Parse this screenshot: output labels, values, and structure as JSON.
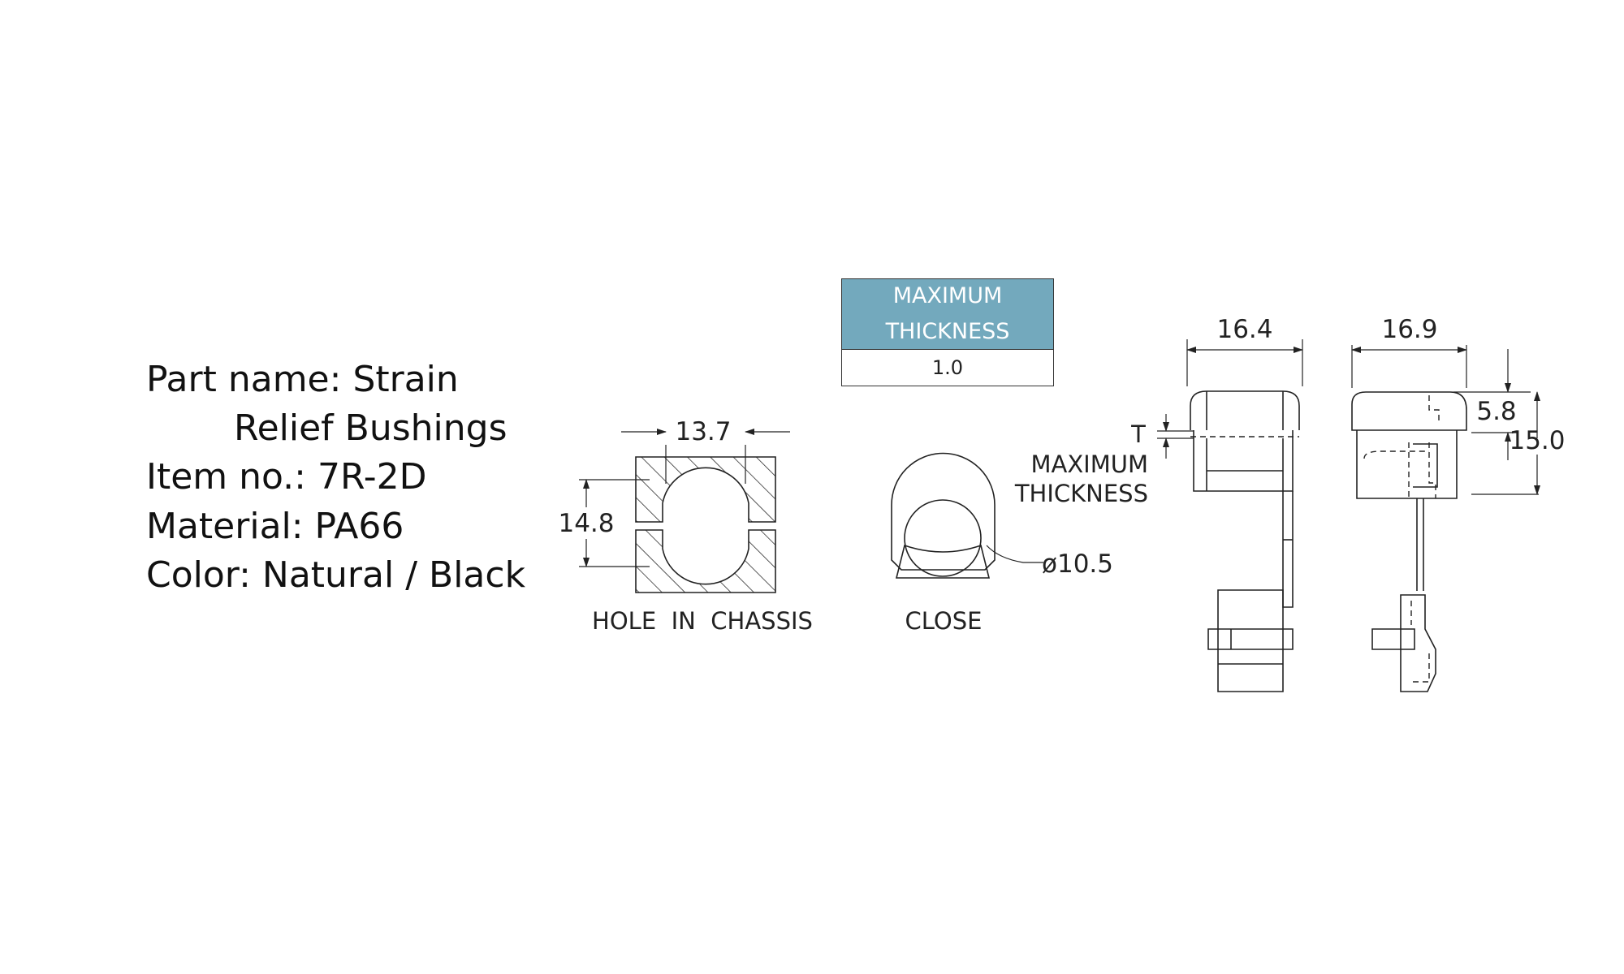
{
  "specs": {
    "part_name": "Part name: Strain",
    "part_name_cont": "Relief Bushings",
    "item_no": "Item no.: 7R-2D",
    "material": "Material: PA66",
    "color": "Color: Natural / Black"
  },
  "thickness_table": {
    "header_line1": "MAXIMUM",
    "header_line2": "THICKNESS",
    "value": "1.0",
    "header_color": "#73a9bd"
  },
  "hole_view": {
    "width_dim": "13.7",
    "height_dim": "14.8",
    "caption": "HOLE  IN  CHASSIS"
  },
  "close_view": {
    "diameter_dim": "ø10.5",
    "caption": "CLOSE"
  },
  "side_view_a": {
    "width_dim": "16.4",
    "t_label": "T",
    "max_line1": "MAXIMUM",
    "max_line2": "THICKNESS"
  },
  "side_view_b": {
    "width_dim": "16.9",
    "cap_dim": "5.8",
    "height_dim": "15.0"
  }
}
